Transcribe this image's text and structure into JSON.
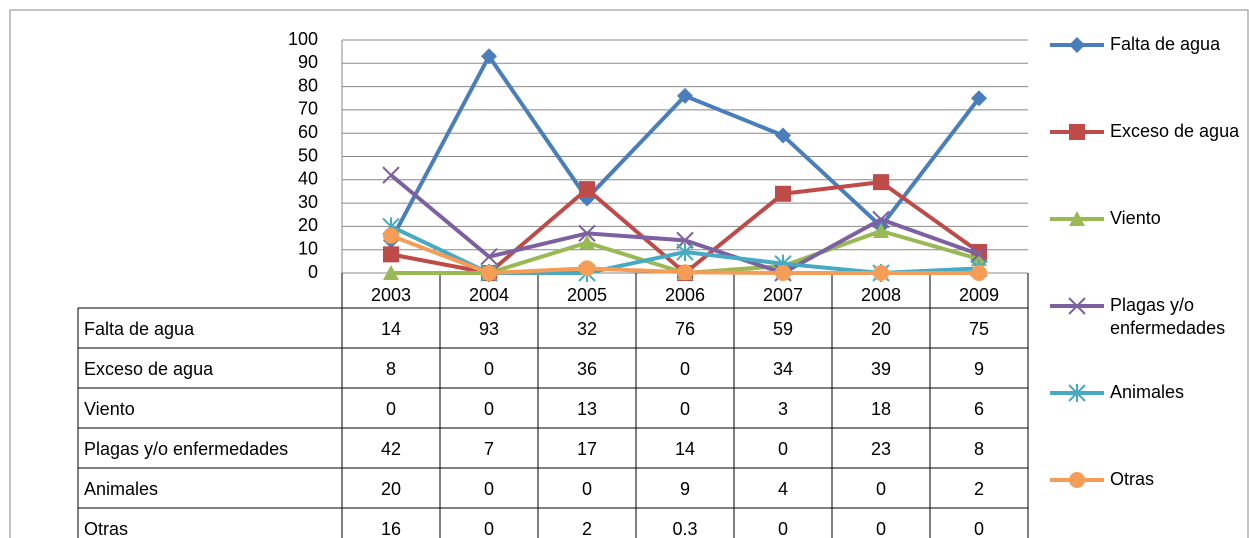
{
  "chart_data": {
    "type": "line",
    "categories": [
      "2003",
      "2004",
      "2005",
      "2006",
      "2007",
      "2008",
      "2009"
    ],
    "ylim": [
      0,
      100
    ],
    "yticks": [
      0,
      10,
      20,
      30,
      40,
      50,
      60,
      70,
      80,
      90,
      100
    ],
    "grid": true,
    "legend": "right",
    "series": [
      {
        "name": "Falta de agua",
        "color": "#4a7ebb",
        "marker": "diamond",
        "values": [
          14,
          93,
          32,
          76,
          59,
          20,
          75
        ]
      },
      {
        "name": "Exceso de agua",
        "color": "#be4b48",
        "marker": "square",
        "values": [
          8,
          0,
          36,
          0,
          34,
          39,
          9
        ]
      },
      {
        "name": "Viento",
        "color": "#98b954",
        "marker": "triangle",
        "values": [
          0,
          0,
          13,
          0,
          3,
          18,
          6
        ]
      },
      {
        "name": "Plagas y/o enfermedades",
        "color": "#7d60a0",
        "marker": "x",
        "values": [
          42,
          7,
          17,
          14,
          0,
          23,
          8
        ]
      },
      {
        "name": "Animales",
        "color": "#46aac5",
        "marker": "star",
        "values": [
          20,
          0,
          0,
          9,
          4,
          0,
          2
        ]
      },
      {
        "name": "Otras",
        "color": "#f59d56",
        "marker": "circle",
        "values": [
          16,
          0,
          2,
          0.3,
          0,
          0,
          0
        ]
      }
    ]
  }
}
